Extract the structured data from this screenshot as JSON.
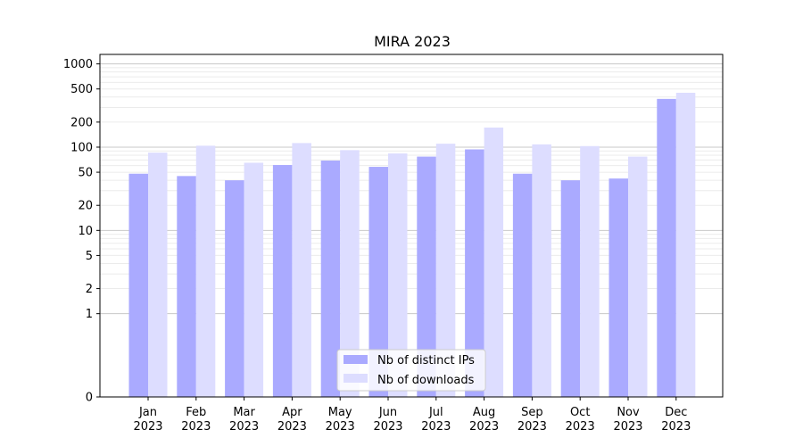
{
  "chart_data": {
    "type": "bar",
    "title": "MIRA 2023",
    "xlabel": "",
    "ylabel": "",
    "categories": [
      [
        "Jan",
        "2023"
      ],
      [
        "Feb",
        "2023"
      ],
      [
        "Mar",
        "2023"
      ],
      [
        "Apr",
        "2023"
      ],
      [
        "May",
        "2023"
      ],
      [
        "Jun",
        "2023"
      ],
      [
        "Jul",
        "2023"
      ],
      [
        "Aug",
        "2023"
      ],
      [
        "Sep",
        "2023"
      ],
      [
        "Oct",
        "2023"
      ],
      [
        "Nov",
        "2023"
      ],
      [
        "Dec",
        "2023"
      ]
    ],
    "series": [
      {
        "name": "Nb of distinct IPs",
        "color": "#aaaaff",
        "values": [
          48,
          45,
          40,
          61,
          69,
          58,
          77,
          94,
          48,
          40,
          42,
          380
        ]
      },
      {
        "name": "Nb of downloads",
        "color": "#ddddff",
        "values": [
          86,
          104,
          65,
          112,
          92,
          84,
          110,
          172,
          108,
          103,
          77,
          450
        ]
      }
    ],
    "yscale": "symlog",
    "ylim": [
      0,
      1300
    ],
    "yticks": [
      0,
      1,
      2,
      5,
      10,
      20,
      50,
      100,
      200,
      500,
      1000
    ],
    "ytick_labels": [
      "0",
      "1",
      "2",
      "5",
      "10",
      "20",
      "50",
      "100",
      "200",
      "500",
      "1000"
    ],
    "grid": true,
    "legend_position": "bottom-center"
  }
}
